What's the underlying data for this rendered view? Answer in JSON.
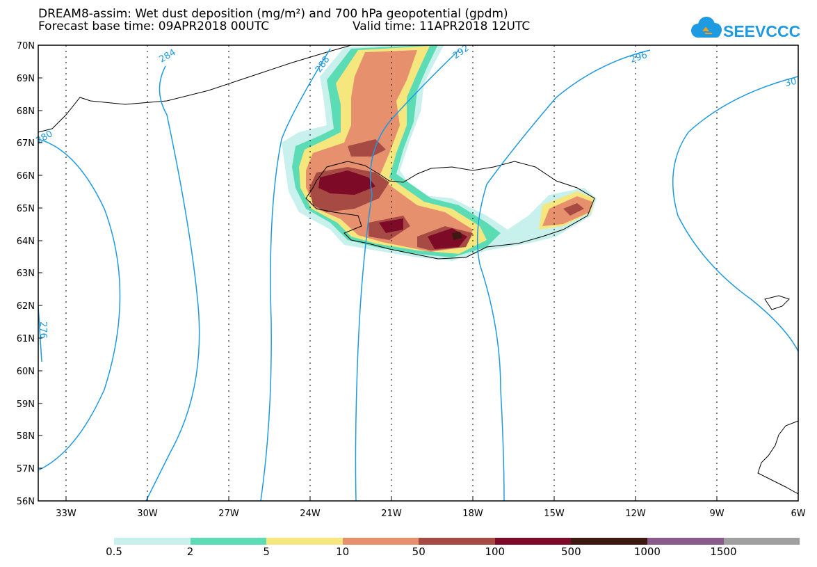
{
  "header": {
    "title_line1": "DREAM8-assim: Wet dust deposition (mg/m²) and 700 hPa geopotential (gpdm)",
    "base_time": "Forecast base time: 09APR2018 00UTC",
    "valid_time": "Valid time: 11APR2018 12UTC"
  },
  "logo": {
    "text": "SEEVCCC",
    "color": "#1e9ae0"
  },
  "map": {
    "lat_labels": [
      "70N",
      "69N",
      "68N",
      "67N",
      "66N",
      "65N",
      "64N",
      "63N",
      "62N",
      "61N",
      "60N",
      "59N",
      "58N",
      "57N",
      "56N"
    ],
    "lon_labels": [
      "33W",
      "30W",
      "27W",
      "24W",
      "21W",
      "18W",
      "15W",
      "12W",
      "9W",
      "6W"
    ],
    "contour_labels": [
      "284",
      "288",
      "292",
      "296",
      "30",
      "280",
      "276"
    ],
    "contour_color": "#1e9ae0"
  },
  "legend": {
    "colors": [
      "#c8f0ec",
      "#5cdcb4",
      "#f5e67d",
      "#e6906e",
      "#a84a44",
      "#7d0a26",
      "#3c1a10",
      "#8a5a8c",
      "#a0a0a0"
    ],
    "labels": [
      "0.5",
      "2",
      "5",
      "10",
      "50",
      "100",
      "500",
      "1000",
      "1500"
    ]
  }
}
